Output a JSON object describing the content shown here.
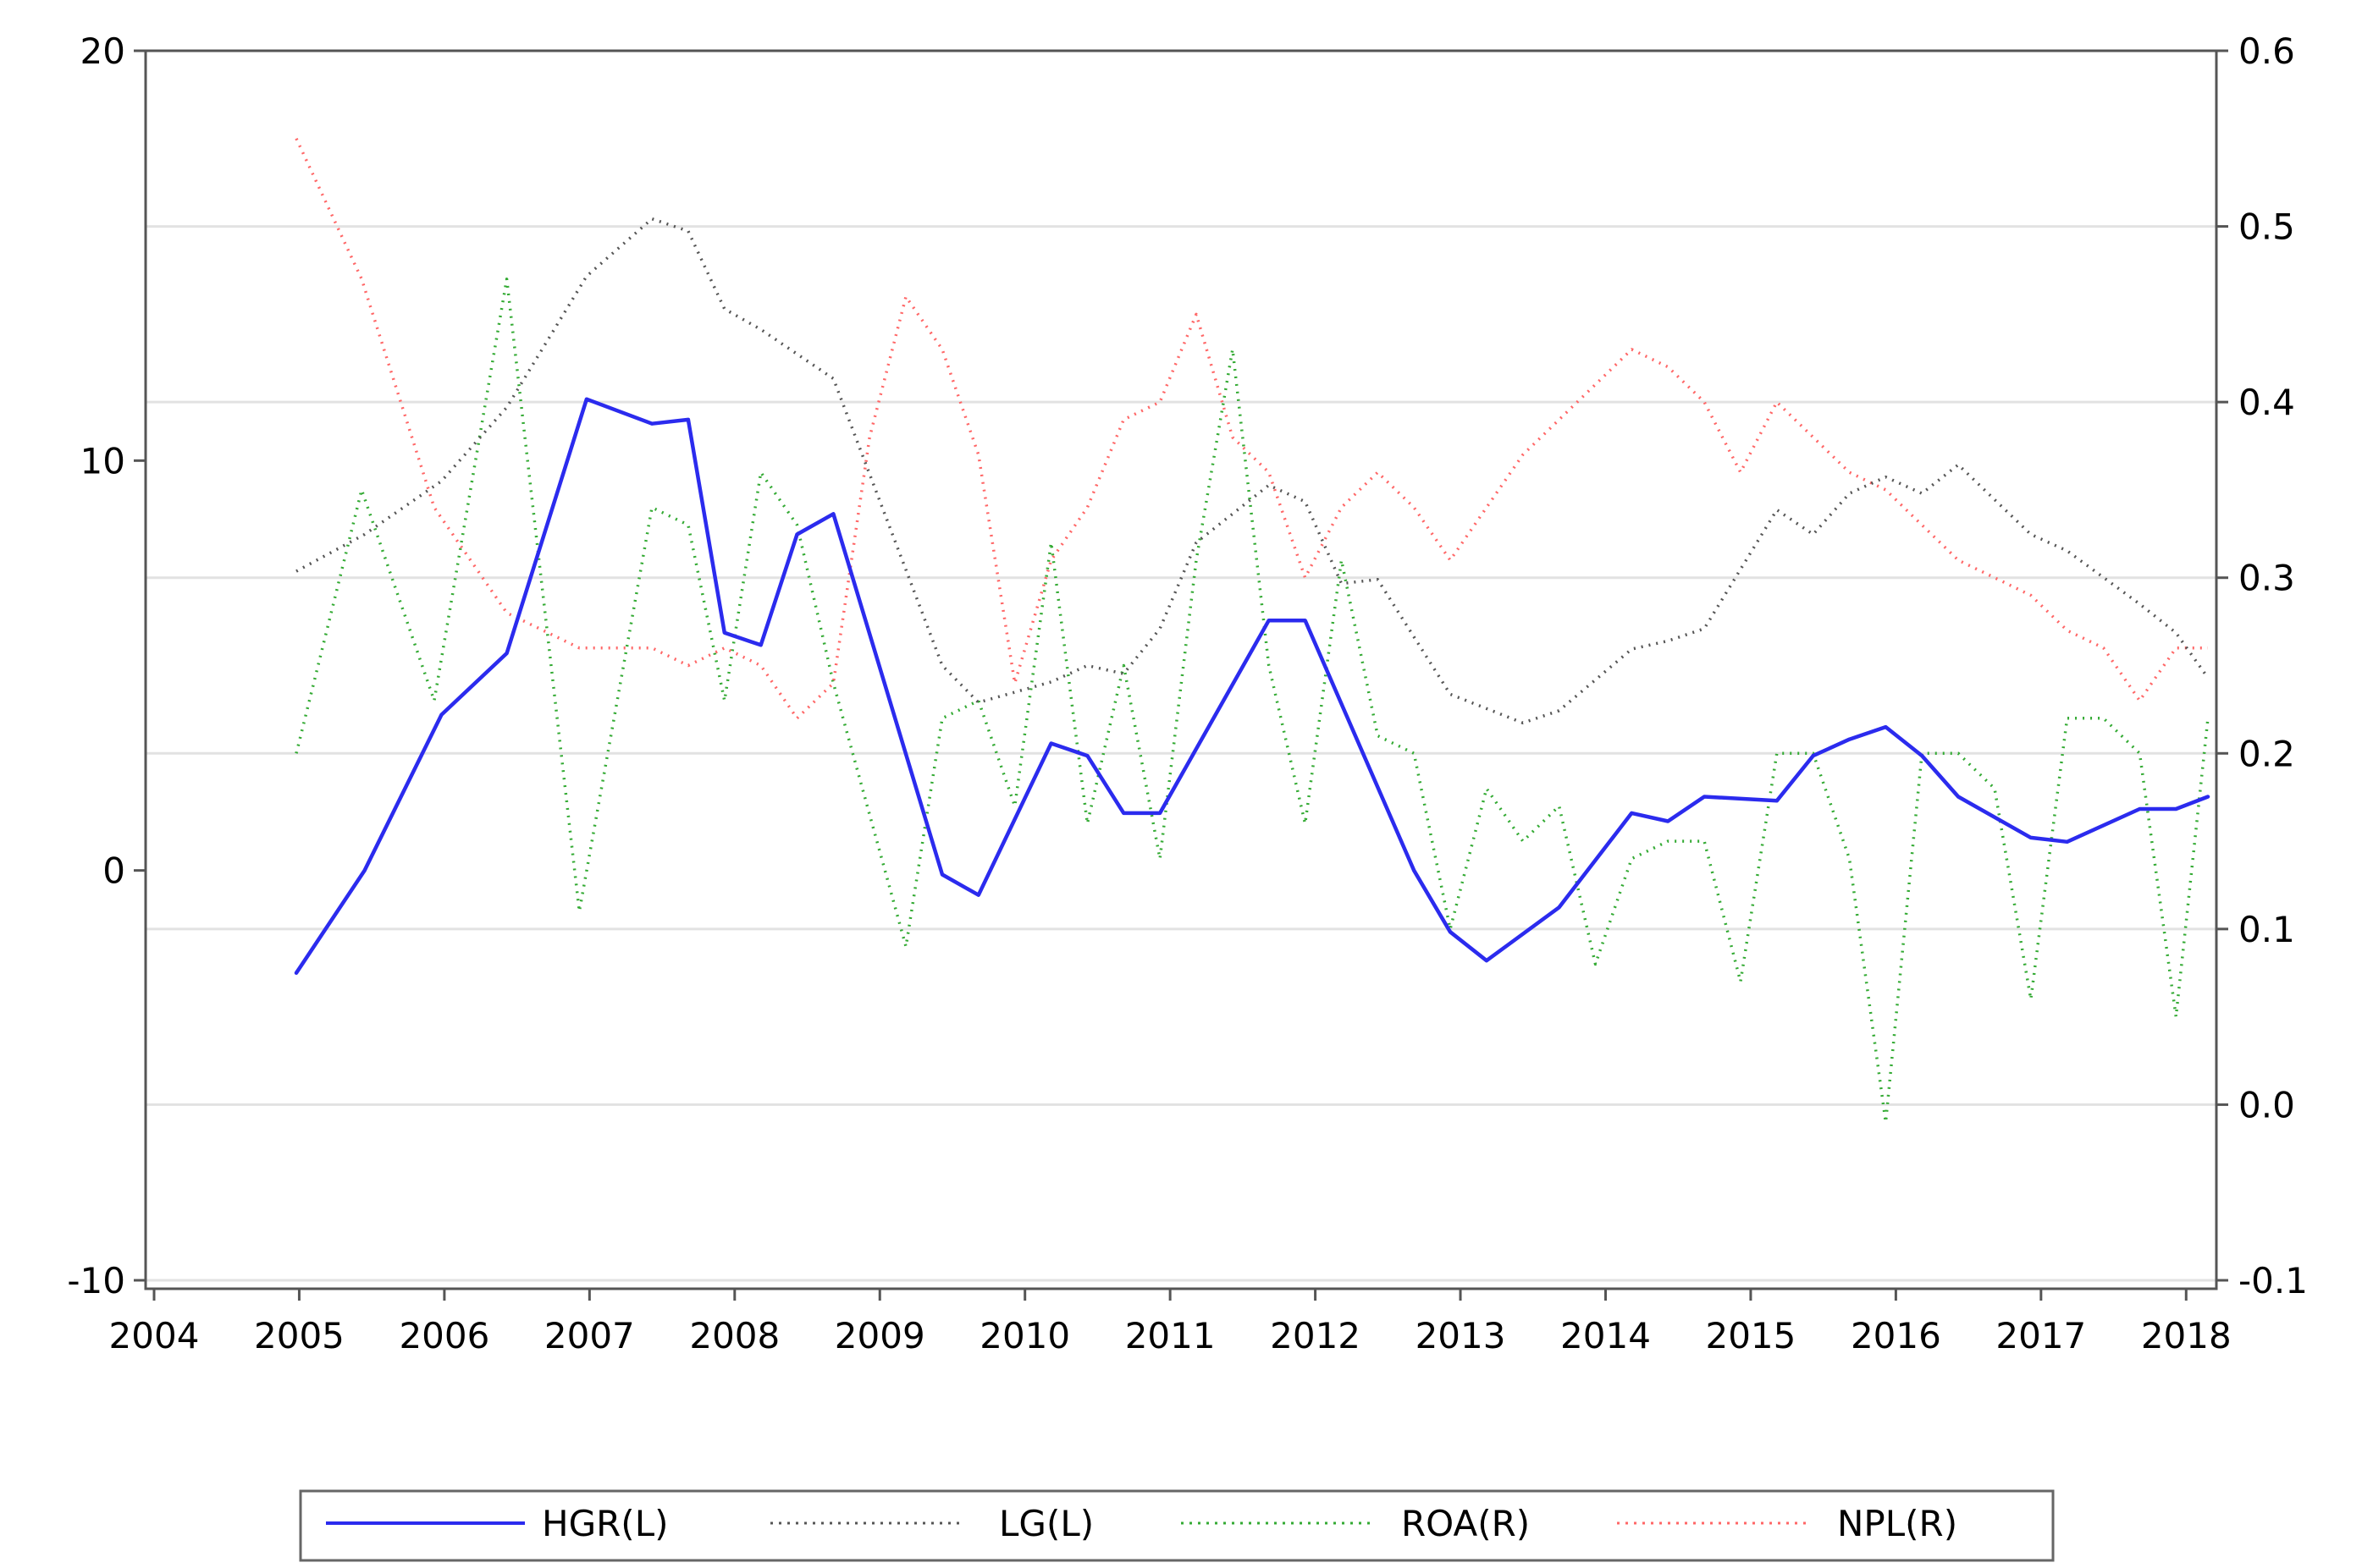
{
  "chart_data": {
    "type": "line",
    "title": "",
    "xlabel": "",
    "ylabel_left": "",
    "ylabel_right": "",
    "grid": true,
    "legend_position": "bottom",
    "x_ticks": [
      "2004",
      "2005",
      "2006",
      "2007",
      "2008",
      "2009",
      "2010",
      "2011",
      "2012",
      "2013",
      "2014",
      "2015",
      "2016",
      "2017",
      "2018"
    ],
    "y_left_ticks": [
      "20",
      "10",
      "0",
      "-10"
    ],
    "y_right_ticks": [
      "0.6",
      "0.5",
      "0.4",
      "0.3",
      "0.2",
      "0.1",
      "0.0",
      "-0.1"
    ],
    "y_left_range": [
      -10,
      20
    ],
    "y_right_range": [
      -0.1,
      0.6
    ],
    "x_range": [
      2004,
      2018.15
    ],
    "series": [
      {
        "name": "HGR(L)",
        "axis": "left",
        "color": "#2b2bee",
        "style": "solid",
        "x": [
          2004.98,
          2005.45,
          2005.98,
          2006.43,
          2006.98,
          2007.43,
          2007.68,
          2007.93,
          2008.18,
          2008.43,
          2008.68,
          2009.43,
          2009.68,
          2010.18,
          2010.43,
          2010.68,
          2010.93,
          2011.68,
          2011.93,
          2012.68,
          2012.93,
          2013.18,
          2013.68,
          2014.18,
          2014.43,
          2014.68,
          2015.18,
          2015.43,
          2015.68,
          2015.93,
          2016.18,
          2016.43,
          2016.93,
          2017.18,
          2017.68,
          2017.93,
          2018.15
        ],
        "values": [
          -2.5,
          0.0,
          3.8,
          5.3,
          11.5,
          10.9,
          11.0,
          5.8,
          5.5,
          8.2,
          8.7,
          -0.1,
          -0.6,
          3.1,
          2.8,
          1.4,
          1.4,
          6.1,
          6.1,
          0.0,
          -1.5,
          -2.2,
          -0.9,
          1.4,
          1.2,
          1.8,
          1.7,
          2.8,
          3.2,
          3.5,
          2.8,
          1.8,
          0.8,
          0.7,
          1.5,
          1.5,
          1.8
        ]
      },
      {
        "name": "LG(L)",
        "axis": "left",
        "color": "#555555",
        "style": "dotted",
        "x": [
          2004.98,
          2005.45,
          2005.98,
          2006.43,
          2006.98,
          2007.43,
          2007.68,
          2007.93,
          2008.18,
          2008.68,
          2009.43,
          2009.68,
          2010.18,
          2010.43,
          2010.68,
          2010.93,
          2011.18,
          2011.68,
          2011.93,
          2012.18,
          2012.43,
          2012.93,
          2013.43,
          2013.68,
          2014.18,
          2014.43,
          2014.68,
          2015.18,
          2015.43,
          2015.68,
          2015.93,
          2016.18,
          2016.43,
          2016.93,
          2017.18,
          2017.68,
          2017.93,
          2018.15
        ],
        "values": [
          7.3,
          8.2,
          9.5,
          11.3,
          14.5,
          15.9,
          15.6,
          13.7,
          13.2,
          12.0,
          5.0,
          4.1,
          4.6,
          5.0,
          4.8,
          5.9,
          8.0,
          9.4,
          9.0,
          7.0,
          7.1,
          4.3,
          3.6,
          3.9,
          5.4,
          5.6,
          5.9,
          8.8,
          8.2,
          9.2,
          9.6,
          9.2,
          9.9,
          8.2,
          7.8,
          6.5,
          5.8,
          4.7
        ]
      },
      {
        "name": "ROA(R)",
        "axis": "right",
        "color": "#33aa33",
        "style": "dotted",
        "x": [
          2004.98,
          2005.43,
          2005.93,
          2006.43,
          2006.93,
          2007.43,
          2007.68,
          2007.93,
          2008.18,
          2008.43,
          2008.68,
          2009.18,
          2009.43,
          2009.68,
          2009.93,
          2010.18,
          2010.43,
          2010.68,
          2010.93,
          2011.18,
          2011.43,
          2011.68,
          2011.93,
          2012.18,
          2012.43,
          2012.68,
          2012.93,
          2013.18,
          2013.43,
          2013.68,
          2013.93,
          2014.18,
          2014.43,
          2014.68,
          2014.93,
          2015.18,
          2015.43,
          2015.68,
          2015.93,
          2016.18,
          2016.43,
          2016.68,
          2016.93,
          2017.18,
          2017.43,
          2017.68,
          2017.93,
          2018.15
        ],
        "values": [
          0.2,
          0.35,
          0.23,
          0.47,
          0.11,
          0.34,
          0.33,
          0.23,
          0.36,
          0.33,
          0.24,
          0.09,
          0.22,
          0.23,
          0.17,
          0.32,
          0.16,
          0.25,
          0.14,
          0.31,
          0.43,
          0.25,
          0.16,
          0.31,
          0.21,
          0.2,
          0.1,
          0.18,
          0.15,
          0.17,
          0.08,
          0.14,
          0.15,
          0.15,
          0.07,
          0.2,
          0.2,
          0.14,
          -0.01,
          0.2,
          0.2,
          0.18,
          0.06,
          0.22,
          0.22,
          0.2,
          0.05,
          0.22
        ]
      },
      {
        "name": "NPL(R)",
        "axis": "right",
        "color": "#ff6666",
        "style": "dotted",
        "x": [
          2004.98,
          2005.43,
          2005.93,
          2006.43,
          2006.93,
          2007.43,
          2007.68,
          2007.93,
          2008.18,
          2008.43,
          2008.68,
          2008.93,
          2009.18,
          2009.43,
          2009.68,
          2009.93,
          2010.18,
          2010.43,
          2010.68,
          2010.93,
          2011.18,
          2011.43,
          2011.68,
          2011.93,
          2012.18,
          2012.43,
          2012.68,
          2012.93,
          2013.18,
          2013.43,
          2013.68,
          2014.18,
          2014.43,
          2014.68,
          2014.93,
          2015.18,
          2015.43,
          2015.68,
          2015.93,
          2016.18,
          2016.43,
          2016.68,
          2016.93,
          2017.18,
          2017.43,
          2017.68,
          2017.93,
          2018.15
        ],
        "values": [
          0.55,
          0.47,
          0.34,
          0.28,
          0.26,
          0.26,
          0.25,
          0.26,
          0.25,
          0.22,
          0.24,
          0.38,
          0.46,
          0.43,
          0.37,
          0.24,
          0.31,
          0.34,
          0.39,
          0.4,
          0.45,
          0.38,
          0.36,
          0.3,
          0.34,
          0.36,
          0.34,
          0.31,
          0.34,
          0.37,
          0.39,
          0.43,
          0.42,
          0.4,
          0.36,
          0.4,
          0.38,
          0.36,
          0.35,
          0.33,
          0.31,
          0.3,
          0.29,
          0.27,
          0.26,
          0.23,
          0.26,
          0.26
        ]
      }
    ]
  }
}
